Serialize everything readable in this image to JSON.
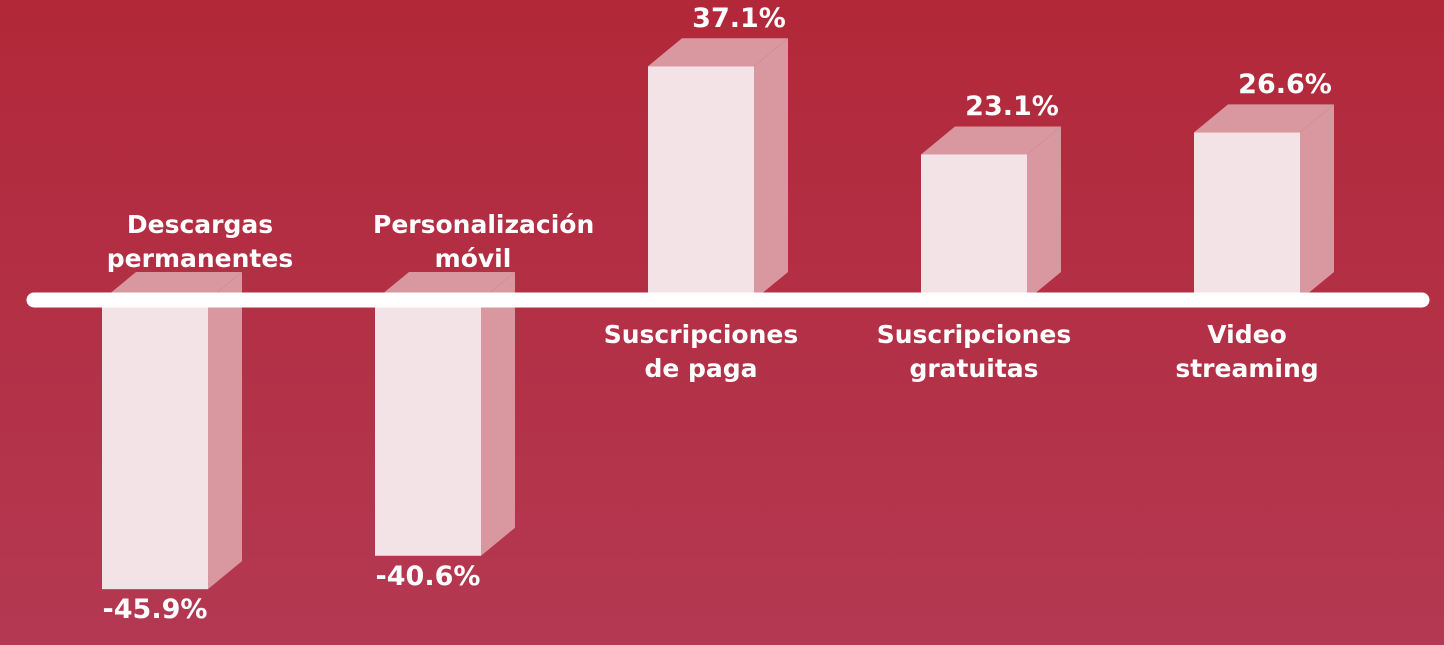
{
  "chart_data": {
    "type": "bar",
    "categories": [
      "Descargas permanentes",
      "Personalización móvil",
      "Suscripciones de paga",
      "Suscripciones gratuitas",
      "Video streaming"
    ],
    "values": [
      -45.9,
      -40.6,
      37.1,
      23.1,
      26.6
    ],
    "value_labels": [
      "-45.9%",
      "-40.6%",
      "37.1%",
      "23.1%",
      "26.6%"
    ],
    "color": "#f3e3e6"
  }
}
